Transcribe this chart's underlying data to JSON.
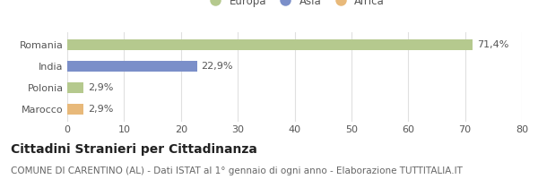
{
  "categories": [
    "Romania",
    "India",
    "Polonia",
    "Marocco"
  ],
  "values": [
    71.4,
    22.9,
    2.9,
    2.9
  ],
  "bar_colors": [
    "#b5c98e",
    "#7b8fc9",
    "#b5c98e",
    "#e8b97a"
  ],
  "value_labels": [
    "71,4%",
    "22,9%",
    "2,9%",
    "2,9%"
  ],
  "xlim": [
    0,
    80
  ],
  "xticks": [
    0,
    10,
    20,
    30,
    40,
    50,
    60,
    70,
    80
  ],
  "legend_items": [
    {
      "label": "Europa",
      "color": "#b5c98e"
    },
    {
      "label": "Asia",
      "color": "#7b8fc9"
    },
    {
      "label": "Africa",
      "color": "#e8b97a"
    }
  ],
  "title": "Cittadini Stranieri per Cittadinanza",
  "subtitle": "COMUNE DI CARENTINO (AL) - Dati ISTAT al 1° gennaio di ogni anno - Elaborazione TUTTITALIA.IT",
  "background_color": "#ffffff",
  "grid_color": "#e0e0e0",
  "title_fontsize": 10,
  "subtitle_fontsize": 7.5,
  "tick_fontsize": 8,
  "label_fontsize": 8,
  "legend_fontsize": 8.5
}
